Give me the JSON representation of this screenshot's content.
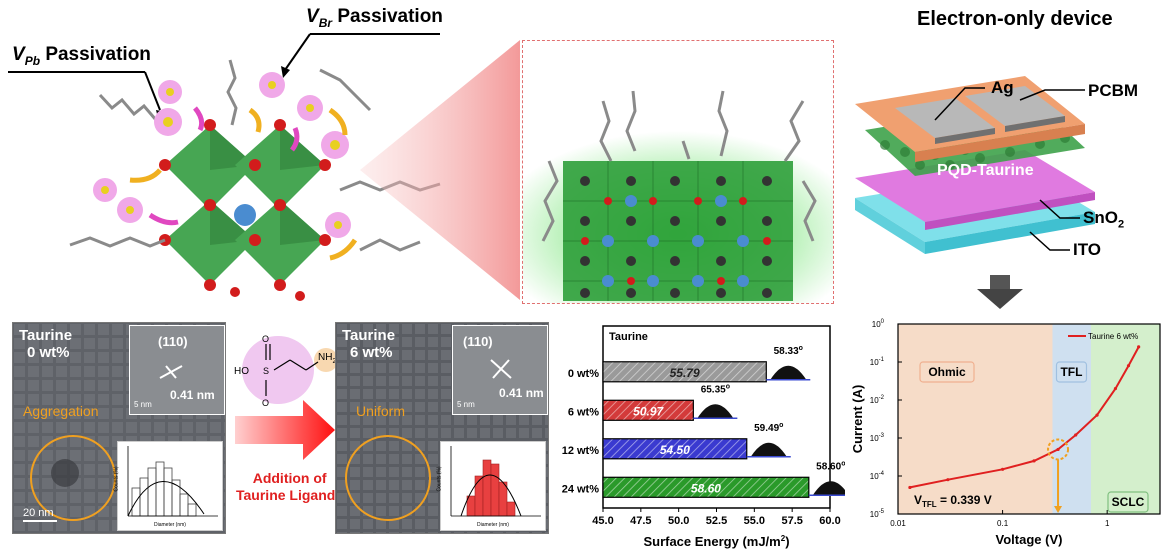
{
  "top": {
    "vpb_label": "V",
    "vpb_sub": "Pb",
    "vbr_label": "V",
    "vbr_sub": "Br",
    "passivation_word": "Passivation",
    "device_title": "Electron-only device",
    "layers": {
      "ag": "Ag",
      "pcbm": "PCBM",
      "pqd": "PQD-Taurine",
      "sno2": "SnO",
      "sno2_sub": "2",
      "ito": "ITO"
    }
  },
  "tem_left": {
    "label_line1": "Taurine",
    "label_line2": "0 wt%",
    "plane": "(110)",
    "spacing": "0.41 nm",
    "inset_scale": "5 nm",
    "state": "Aggregation",
    "scale": "20 nm"
  },
  "tem_right": {
    "label_line1": "Taurine",
    "label_line2": "6 wt%",
    "plane": "(110)",
    "spacing": "0.41 nm",
    "inset_scale": "5 nm",
    "state": "Uniform"
  },
  "molecule": {
    "ho": "HO",
    "nh": "NH",
    "nh_sub": "2"
  },
  "arrow_text": {
    "line1": "Addition of",
    "line2": "Taurine Ligand"
  },
  "hist_axis": {
    "y": "Counts (%)",
    "x": "Diameter (nm)",
    "xticks_left": [
      "6",
      "7",
      "8",
      "9",
      "10",
      "11",
      "12",
      "13",
      "14"
    ],
    "xticks_right": [
      "6",
      "7",
      "8",
      "9",
      "10",
      "11",
      "12"
    ]
  },
  "chart_data": [
    {
      "type": "bar",
      "orientation": "horizontal",
      "title": "Taurine",
      "categories": [
        "0 wt%",
        "6 wt%",
        "12 wt%",
        "24 wt%"
      ],
      "values": [
        55.79,
        50.97,
        54.5,
        58.6
      ],
      "value_labels": [
        "55.79",
        "50.97",
        "54.50",
        "58.60"
      ],
      "contact_angles": [
        "58.33",
        "65.35",
        "59.49",
        "58.60"
      ],
      "degree": "o",
      "colors": [
        "#9a9a9a",
        "#d33a3a",
        "#3a3ad0",
        "#2a9a2a"
      ],
      "xlabel": "Surface Energy (mJ/m",
      "xlabel_sup": "2",
      "xlabel_end": ")",
      "xlim": [
        45.0,
        60.0
      ],
      "xticks": [
        "45.0",
        "47.5",
        "50.0",
        "52.5",
        "55.0",
        "57.5",
        "60.0"
      ]
    },
    {
      "type": "line",
      "xscale": "log",
      "yscale": "log",
      "series": [
        {
          "name": "Taurine 6 wt%",
          "x": [
            0.013,
            0.03,
            0.1,
            0.2,
            0.339,
            0.5,
            0.8,
            1.2,
            1.6,
            2.0
          ],
          "y": [
            5e-05,
            8e-05,
            0.00015,
            0.00025,
            0.0005,
            0.0012,
            0.004,
            0.02,
            0.08,
            0.25
          ]
        }
      ],
      "xlabel": "Voltage (V)",
      "ylabel": "Current (A)",
      "xticks": [
        "0.01",
        "0.1",
        "1"
      ],
      "yticks": [
        "10",
        "10",
        "10",
        "10",
        "10",
        "10"
      ],
      "yticks_exp": [
        "0",
        "-1",
        "-2",
        "-3",
        "-4",
        "-5"
      ],
      "regions": [
        "Ohmic",
        "TFL",
        "SCLC"
      ],
      "vtfl_label": "V",
      "vtfl_sub": "TFL",
      "vtfl_value": " = 0.339 V",
      "colors": {
        "line": "#e02020",
        "ohmic": "#f6dcc8",
        "tfl": "#cfe0f0",
        "sclc": "#d4efcc"
      }
    }
  ]
}
